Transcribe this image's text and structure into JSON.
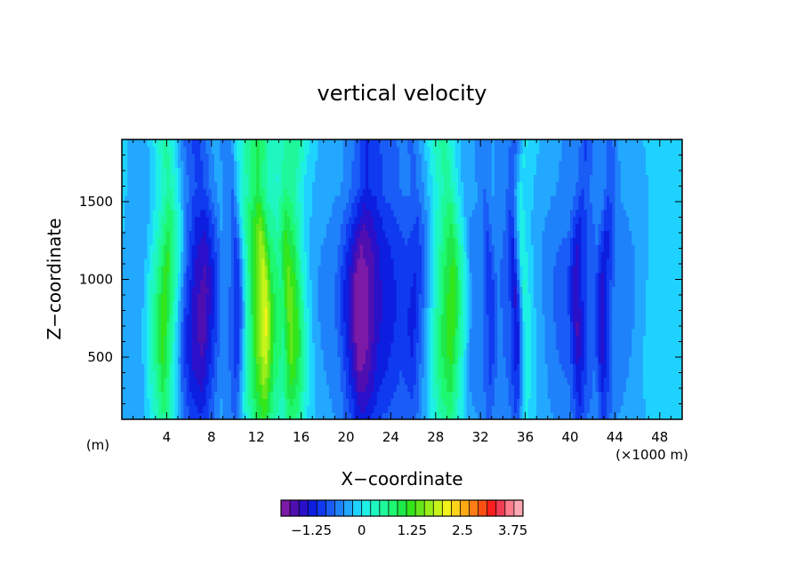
{
  "chart_data": {
    "type": "heatmap",
    "title": "vertical velocity",
    "xlabel": "X−coordinate",
    "ylabel": "Z−coordinate",
    "x_unit_label": "(×1000 m)",
    "y_unit_label": "(m)",
    "xlim": [
      0,
      50
    ],
    "ylim": [
      100,
      1900
    ],
    "x_ticks": [
      "4",
      "8",
      "12",
      "16",
      "20",
      "24",
      "28",
      "32",
      "36",
      "40",
      "44",
      "48"
    ],
    "x_tick_values": [
      4,
      8,
      12,
      16,
      20,
      24,
      28,
      32,
      36,
      40,
      44,
      48
    ],
    "y_ticks": [
      "500",
      "1000",
      "1500"
    ],
    "y_tick_values": [
      500,
      1000,
      1500
    ],
    "colorbar": {
      "min": -2.0,
      "max": 4.0,
      "step": 0.25,
      "tick_labels": [
        "−1.25",
        "0",
        "1.25",
        "2.5",
        "3.75"
      ],
      "tick_values": [
        -1.25,
        0,
        1.25,
        2.5,
        3.75
      ],
      "colors": [
        "#7a1aa6",
        "#4f0fb0",
        "#2a10c8",
        "#0d1ee0",
        "#0f3af0",
        "#1a5cf6",
        "#1f82fa",
        "#22a8ff",
        "#1fd2ff",
        "#1ef0e6",
        "#1ef8c0",
        "#1ef89a",
        "#1ef870",
        "#1ee84a",
        "#33e61a",
        "#66e61a",
        "#99ee1a",
        "#c6f41a",
        "#f2f21a",
        "#ffd21a",
        "#ffaa14",
        "#ff7d14",
        "#ff5014",
        "#ff1e1e",
        "#f03c55",
        "#ff7d8c",
        "#ffa8b4"
      ]
    },
    "columns": [
      {
        "x": 0.0,
        "w": -0.1
      },
      {
        "x": 1.0,
        "w": -0.2
      },
      {
        "x": 2.0,
        "w": 0.0
      },
      {
        "x": 3.0,
        "w": 0.8
      },
      {
        "x": 3.8,
        "w": 1.6
      },
      {
        "x": 4.6,
        "w": 0.6
      },
      {
        "x": 5.5,
        "w": -0.7
      },
      {
        "x": 6.3,
        "w": -1.3
      },
      {
        "x": 7.2,
        "w": -1.5
      },
      {
        "x": 8.0,
        "w": -0.9
      },
      {
        "x": 8.8,
        "w": -0.3
      },
      {
        "x": 9.5,
        "w": -0.5
      },
      {
        "x": 10.2,
        "w": -0.9
      },
      {
        "x": 11.0,
        "w": 0.6
      },
      {
        "x": 12.0,
        "w": 1.8
      },
      {
        "x": 12.7,
        "w": 2.4
      },
      {
        "x": 13.5,
        "w": 1.2
      },
      {
        "x": 14.3,
        "w": 0.9
      },
      {
        "x": 15.0,
        "w": 1.8
      },
      {
        "x": 15.7,
        "w": 1.4
      },
      {
        "x": 16.5,
        "w": 0.4
      },
      {
        "x": 17.5,
        "w": -0.2
      },
      {
        "x": 18.5,
        "w": -0.3
      },
      {
        "x": 19.5,
        "w": -0.5
      },
      {
        "x": 20.5,
        "w": -1.2
      },
      {
        "x": 21.3,
        "w": -1.9
      },
      {
        "x": 22.0,
        "w": -1.7
      },
      {
        "x": 23.0,
        "w": -1.2
      },
      {
        "x": 24.0,
        "w": -1.0
      },
      {
        "x": 25.0,
        "w": -0.8
      },
      {
        "x": 26.0,
        "w": -1.0
      },
      {
        "x": 26.7,
        "w": -0.5
      },
      {
        "x": 27.5,
        "w": 0.3
      },
      {
        "x": 28.5,
        "w": 1.2
      },
      {
        "x": 29.3,
        "w": 1.6
      },
      {
        "x": 30.0,
        "w": 0.8
      },
      {
        "x": 31.0,
        "w": -0.3
      },
      {
        "x": 32.0,
        "w": -0.4
      },
      {
        "x": 32.8,
        "w": -0.9
      },
      {
        "x": 33.5,
        "w": -0.4
      },
      {
        "x": 34.5,
        "w": -0.6
      },
      {
        "x": 35.2,
        "w": -1.2
      },
      {
        "x": 36.0,
        "w": 0.5
      },
      {
        "x": 37.0,
        "w": 0.0
      },
      {
        "x": 38.0,
        "w": -0.3
      },
      {
        "x": 39.0,
        "w": -0.5
      },
      {
        "x": 40.0,
        "w": -0.6
      },
      {
        "x": 40.8,
        "w": -1.4
      },
      {
        "x": 41.5,
        "w": -0.8
      },
      {
        "x": 42.3,
        "w": -0.5
      },
      {
        "x": 43.0,
        "w": -1.3
      },
      {
        "x": 44.0,
        "w": -0.4
      },
      {
        "x": 45.0,
        "w": -0.3
      },
      {
        "x": 46.0,
        "w": -0.2
      },
      {
        "x": 47.0,
        "w": 0.1
      },
      {
        "x": 48.5,
        "w": 0.1
      },
      {
        "x": 50.0,
        "w": 0.0
      }
    ]
  }
}
